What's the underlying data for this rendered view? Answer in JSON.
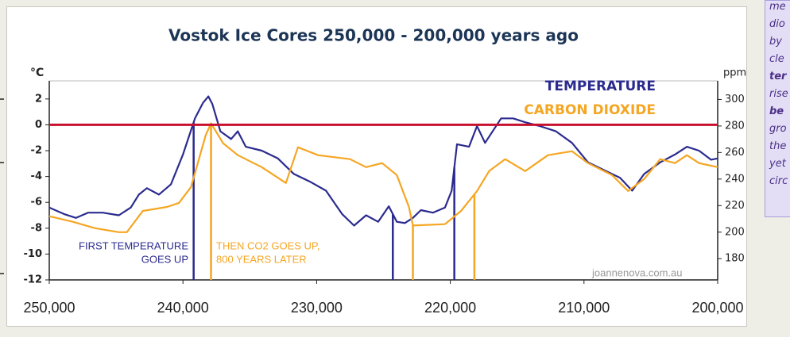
{
  "chart_data": {
    "type": "line",
    "title": "Vostok Ice Cores   250,000 - 200,000 years ago",
    "ylabel": "°C",
    "y2label": "ppm",
    "xlim": [
      250000,
      200000
    ],
    "xticks": [
      {
        "value": 250000,
        "label": "250,000"
      },
      {
        "value": 240000,
        "label": "240,000"
      },
      {
        "value": 230000,
        "label": "230,000"
      },
      {
        "value": 220000,
        "label": "220,000"
      },
      {
        "value": 210000,
        "label": "210,000"
      },
      {
        "value": 200000,
        "label": "200,000"
      }
    ],
    "ylim": [
      -12,
      3.4
    ],
    "yticks": [
      2,
      0,
      -2,
      -4,
      -6,
      -8,
      -10,
      -12
    ],
    "y2lim": [
      164,
      314
    ],
    "y2ticks": [
      300,
      280,
      260,
      240,
      220,
      200,
      180
    ],
    "reference_line": {
      "value": 0,
      "color": "#c8102e"
    },
    "series": [
      {
        "name": "TEMPERATURE",
        "color": "#2b2b8f",
        "x": [
          250000,
          248900,
          248000,
          247100,
          246000,
          244800,
          243900,
          243300,
          242700,
          241800,
          240900,
          240000,
          239100,
          238500,
          238100,
          237800,
          237200,
          236400,
          235900,
          235300,
          234100,
          232900,
          231700,
          230500,
          229300,
          228100,
          227200,
          226300,
          225400,
          224600,
          224000,
          223400,
          222800,
          222200,
          221300,
          220400,
          219900,
          219500,
          218600,
          218000,
          217400,
          216200,
          215300,
          214400,
          213300,
          212100,
          210900,
          209700,
          208500,
          207300,
          206400,
          205500,
          204300,
          203200,
          202300,
          201400,
          200500,
          200000
        ],
        "values": [
          -6.4,
          -6.9,
          -7.2,
          -6.8,
          -6.8,
          -7.0,
          -6.4,
          -5.4,
          -4.9,
          -5.4,
          -4.6,
          -2.3,
          0.5,
          1.7,
          2.2,
          1.6,
          -0.5,
          -1.1,
          -0.5,
          -1.7,
          -2.0,
          -2.6,
          -3.8,
          -4.4,
          -5.1,
          -6.9,
          -7.8,
          -7.0,
          -7.5,
          -6.3,
          -7.5,
          -7.6,
          -7.2,
          -6.6,
          -6.8,
          -6.4,
          -5.1,
          -1.5,
          -1.7,
          -0.1,
          -1.4,
          0.5,
          0.5,
          0.2,
          -0.1,
          -0.5,
          -1.4,
          -2.9,
          -3.5,
          -4.1,
          -5.1,
          -3.8,
          -2.9,
          -2.3,
          -1.7,
          -2.0,
          -2.7,
          -2.6
        ],
        "markers": [
          239200,
          224300,
          219700
        ]
      },
      {
        "name": "CARBON DIOXIDE",
        "color": "#f5a623",
        "axis": "y2",
        "x": [
          250000,
          248300,
          246600,
          244800,
          244200,
          243000,
          241200,
          240300,
          239400,
          238300,
          237900,
          237000,
          235900,
          234100,
          232300,
          231400,
          229900,
          227500,
          226300,
          225100,
          224000,
          223100,
          222800,
          220400,
          219200,
          218000,
          217100,
          215900,
          214400,
          212700,
          210900,
          209700,
          207900,
          206700,
          205500,
          204300,
          203200,
          202300,
          201400,
          200000
        ],
        "values": [
          212,
          208,
          203,
          200,
          200,
          216,
          219,
          222,
          234,
          273,
          282,
          267,
          258,
          249,
          237,
          264,
          258,
          255,
          249,
          252,
          243,
          219,
          205,
          206,
          216,
          231,
          246,
          255,
          246,
          258,
          261,
          252,
          243,
          231,
          240,
          255,
          252,
          258,
          252,
          249
        ],
        "markers": [
          237900,
          222800,
          218200
        ]
      }
    ],
    "annotations": [
      "FIRST TEMPERATURE",
      "GOES UP",
      "THEN CO2 GOES UP,",
      "800 YEARS LATER",
      "joannenova.com.au"
    ]
  },
  "sidebar": {
    "lines": [
      "me",
      "dio",
      "by",
      "cle",
      "ter",
      "rise",
      "be",
      "gro",
      "the",
      "yet",
      "circ"
    ]
  }
}
